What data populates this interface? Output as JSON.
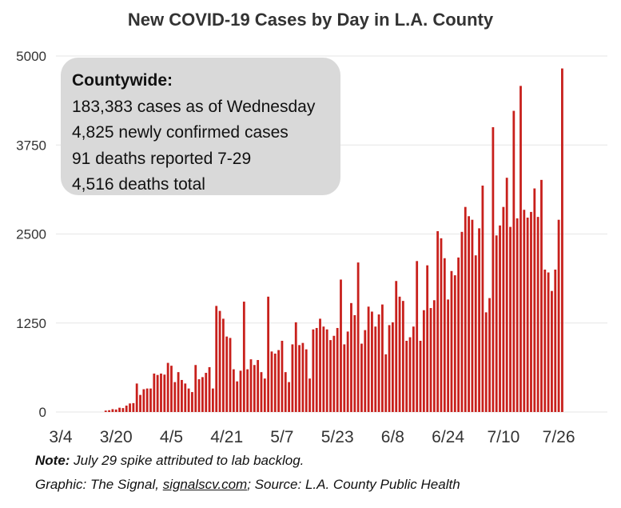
{
  "chart_data": {
    "type": "bar",
    "title": "New COVID-19 Cases by Day in L.A. County",
    "xlabel": "",
    "ylabel": "",
    "ylim": [
      0,
      5000
    ],
    "yticks": [
      "0",
      "1250",
      "2500",
      "3750",
      "5000"
    ],
    "grid": true,
    "bar_color": "#c8201c",
    "x_tick_labels": [
      "3/4",
      "3/20",
      "4/5",
      "4/21",
      "5/7",
      "5/23",
      "6/8",
      "6/24",
      "7/10",
      "7/26"
    ],
    "start_date": "3/4",
    "values": [
      0,
      0,
      0,
      0,
      0,
      0,
      0,
      0,
      0,
      0,
      0,
      0,
      0,
      20,
      25,
      40,
      35,
      60,
      55,
      90,
      120,
      125,
      400,
      240,
      320,
      330,
      330,
      540,
      520,
      540,
      525,
      690,
      650,
      420,
      560,
      450,
      400,
      330,
      280,
      660,
      460,
      490,
      550,
      630,
      330,
      1490,
      1420,
      1310,
      1060,
      1040,
      600,
      430,
      580,
      1550,
      600,
      740,
      660,
      730,
      560,
      470,
      1620,
      850,
      820,
      870,
      1000,
      560,
      420,
      950,
      1260,
      940,
      970,
      880,
      470,
      1160,
      1180,
      1310,
      1200,
      1160,
      1010,
      1070,
      1180,
      1860,
      950,
      1130,
      1530,
      1360,
      2100,
      960,
      1150,
      1480,
      1410,
      1200,
      1370,
      1510,
      810,
      1220,
      1260,
      1840,
      1620,
      1560,
      1000,
      1050,
      1200,
      2120,
      1000,
      1430,
      2060,
      1460,
      1570,
      2540,
      2440,
      2160,
      1580,
      1980,
      1920,
      2170,
      2530,
      2880,
      2750,
      2700,
      2200,
      2580,
      3180,
      1400,
      1600,
      4000,
      2480,
      2620,
      2880,
      3290,
      2600,
      4230,
      2720,
      4580,
      2840,
      2730,
      2810,
      3140,
      2740,
      3260,
      2000,
      1960,
      1700,
      2000,
      2700,
      4825
    ]
  },
  "info_box": {
    "title": "Countywide:",
    "line1": "183,383 cases as of Wednesday",
    "line2": "4,825 newly confirmed cases",
    "line3": "91 deaths reported 7-29",
    "line4": "4,516 deaths total"
  },
  "footer": {
    "note_label": "Note:",
    "note_text": " July 29 spike attributed to lab backlog.",
    "credit_prefix": "Graphic: The Signal, ",
    "credit_link": "signalscv.com",
    "credit_suffix": "; Source: L.A. County Public Health"
  }
}
